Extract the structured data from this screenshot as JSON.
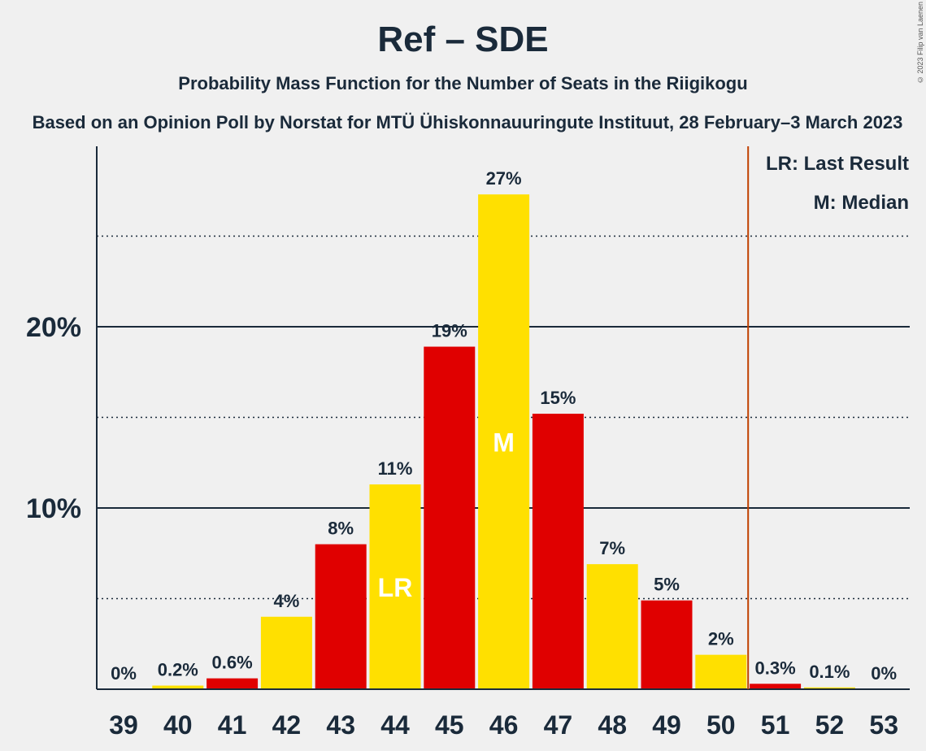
{
  "header": {
    "title": "Ref – SDE",
    "subtitle": "Probability Mass Function for the Number of Seats in the Riigikogu",
    "subtitle2": "Based on an Opinion Poll by Norstat for MTÜ Ühiskonnauuringute Instituut, 28 February–3 March 2023",
    "copyright": "© 2023 Filip van Laenen"
  },
  "legend": {
    "lr": "LR: Last Result",
    "m": "M: Median"
  },
  "chart_data": {
    "type": "bar",
    "categories": [
      "39",
      "40",
      "41",
      "42",
      "43",
      "44",
      "45",
      "46",
      "47",
      "48",
      "49",
      "50",
      "51",
      "52",
      "53"
    ],
    "values": [
      0,
      0.2,
      0.6,
      4,
      8,
      11.3,
      18.9,
      27.3,
      15.2,
      6.9,
      4.9,
      1.9,
      0.3,
      0.1,
      0
    ],
    "value_labels": [
      "0%",
      "0.2%",
      "0.6%",
      "4%",
      "8%",
      "11%",
      "19%",
      "27%",
      "15%",
      "7%",
      "5%",
      "2%",
      "0.3%",
      "0.1%",
      "0%"
    ],
    "bar_colors": [
      "#ffe000",
      "#ffe000",
      "#e00000",
      "#ffe000",
      "#e00000",
      "#ffe000",
      "#e00000",
      "#ffe000",
      "#e00000",
      "#ffe000",
      "#e00000",
      "#ffe000",
      "#e00000",
      "#ffe000",
      "#e00000"
    ],
    "in_bar_labels": {
      "44": "LR",
      "46": "M"
    },
    "y_ticks": [
      10,
      20
    ],
    "y_tick_labels": [
      "10%",
      "20%"
    ],
    "dotted_gridlines": [
      5,
      15,
      25
    ],
    "ylim": [
      0,
      30
    ],
    "last_result_line_after": "50",
    "last_result_line_color": "#c04000",
    "axis_color": "#1a2a3a",
    "xlabel": "",
    "ylabel": ""
  }
}
